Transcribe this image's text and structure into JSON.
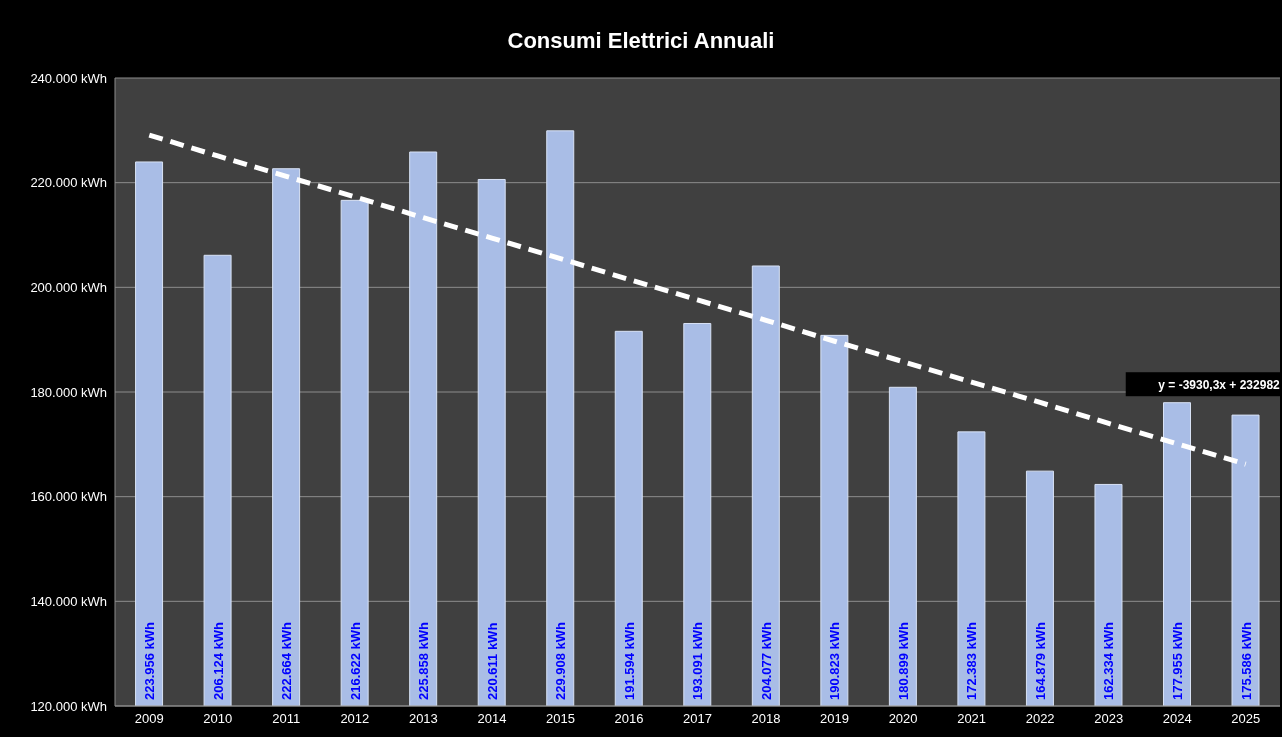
{
  "chart_data": {
    "type": "bar",
    "title": "Consumi Elettrici Annuali",
    "categories": [
      "2009",
      "2010",
      "2011",
      "2012",
      "2013",
      "2014",
      "2015",
      "2016",
      "2017",
      "2018",
      "2019",
      "2020",
      "2021",
      "2022",
      "2023",
      "2024",
      "2025"
    ],
    "series": [
      {
        "color": "#a9bde6",
        "values": [
          223956,
          206124,
          222664,
          216622,
          225858,
          220611,
          229908,
          191594,
          193091,
          204077,
          190823,
          180899,
          172383,
          164879,
          162334,
          177955,
          175586
        ],
        "value_labels": [
          "223.956 kWh",
          "206.124 kWh",
          "222.664 kWh",
          "216.622 kWh",
          "225.858 kWh",
          "220.611 kWh",
          "229.908 kWh",
          "191.594 kWh",
          "193.091 kWh",
          "204.077 kWh",
          "190.823 kWh",
          "180.899 kWh",
          "172.383 kWh",
          "164.879 kWh",
          "162.334 kWh",
          "177.955 kWh",
          "175.586 kWh"
        ]
      },
      {
        "type": "line",
        "color": "#ffffff",
        "line_style": "dashed",
        "marker": "none",
        "values": [
          229100,
          225100,
          221200,
          217300,
          213300,
          209400,
          205500,
          201500,
          197600,
          193700,
          189700,
          185800,
          181900,
          178000,
          174000,
          170100,
          166200
        ]
      }
    ],
    "ylim": [
      120000,
      240000
    ],
    "yticks": [
      {
        "value": 120000,
        "label": "120.000 kWh"
      },
      {
        "value": 140000,
        "label": "140.000 kWh"
      },
      {
        "value": 160000,
        "label": "160.000 kWh"
      },
      {
        "value": 180000,
        "label": "180.000 kWh"
      },
      {
        "value": 200000,
        "label": "200.000 kWh"
      },
      {
        "value": 220000,
        "label": "220.000 kWh"
      },
      {
        "value": 240000,
        "label": "240.000 kWh"
      }
    ],
    "grid": "y",
    "legend": false,
    "annotations": [
      "y = -3930,3x + 232982"
    ]
  }
}
